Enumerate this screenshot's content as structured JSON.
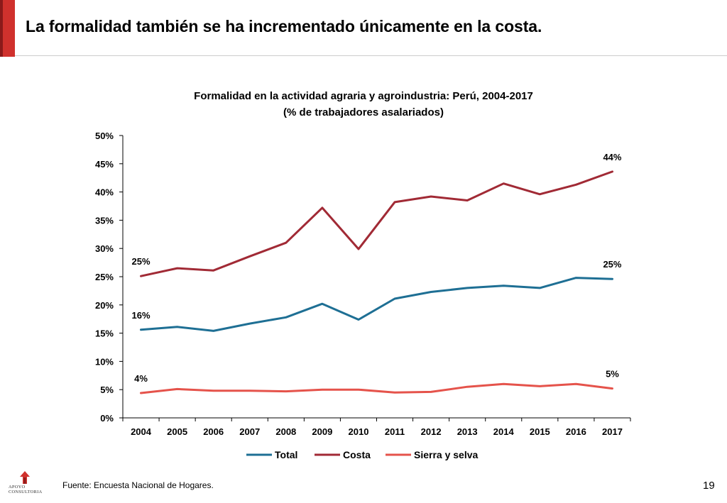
{
  "page": {
    "title": "La formalidad también se ha incrementado únicamente en la costa.",
    "source": "Fuente: Encuesta Nacional de Hogares.",
    "page_number": "19",
    "logo_text": [
      "APOYO",
      "CONSULTORIA"
    ]
  },
  "colors": {
    "accent": "#d0312d",
    "total": "#1e6f94",
    "costa": "#a12a35",
    "sierra": "#e5534b"
  },
  "chart_data": {
    "type": "line",
    "title": "Formalidad en la actividad agraria y agroindustria: Perú, 2004-2017",
    "subtitle": "(% de trabajadores asalariados)",
    "xlabel": "",
    "ylabel": "",
    "categories": [
      "2004",
      "2005",
      "2006",
      "2007",
      "2008",
      "2009",
      "2010",
      "2011",
      "2012",
      "2013",
      "2014",
      "2015",
      "2016",
      "2017"
    ],
    "ylim": [
      0,
      50
    ],
    "yticks": [
      "0%",
      "5%",
      "10%",
      "15%",
      "20%",
      "25%",
      "30%",
      "35%",
      "40%",
      "45%",
      "50%"
    ],
    "grid": false,
    "legend_position": "bottom",
    "series": [
      {
        "name": "Total",
        "key": "total",
        "values": [
          15.6,
          16.1,
          15.4,
          16.7,
          17.8,
          20.2,
          17.4,
          21.1,
          22.3,
          23.0,
          23.4,
          23.0,
          24.8,
          24.6
        ],
        "labels": [
          {
            "index": 0,
            "text": "16%"
          },
          {
            "index": 13,
            "text": "25%"
          }
        ]
      },
      {
        "name": "Costa",
        "key": "costa",
        "values": [
          25.1,
          26.5,
          26.1,
          28.6,
          31.0,
          37.2,
          29.9,
          38.2,
          39.2,
          38.5,
          41.5,
          39.6,
          41.3,
          43.6
        ],
        "labels": [
          {
            "index": 0,
            "text": "25%"
          },
          {
            "index": 13,
            "text": "44%"
          }
        ]
      },
      {
        "name": "Sierra y selva",
        "key": "sierra",
        "values": [
          4.4,
          5.1,
          4.8,
          4.8,
          4.7,
          5.0,
          5.0,
          4.5,
          4.6,
          5.5,
          6.0,
          5.6,
          6.0,
          5.2
        ],
        "labels": [
          {
            "index": 0,
            "text": "4%"
          },
          {
            "index": 13,
            "text": "5%"
          }
        ]
      }
    ]
  }
}
